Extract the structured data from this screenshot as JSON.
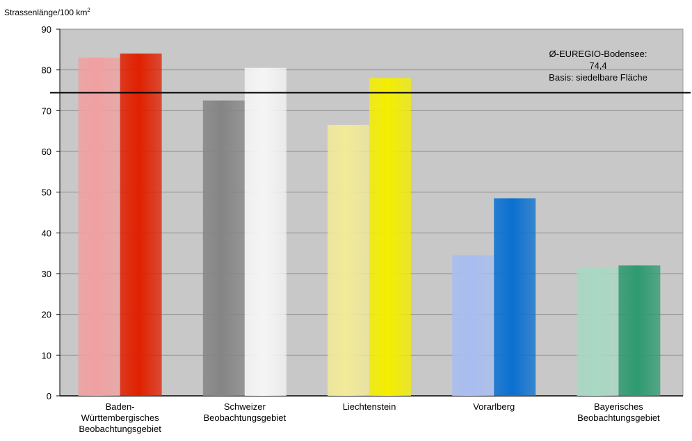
{
  "chart_data": {
    "type": "bar",
    "title": "",
    "ylabel": "Strassenlänge/100 km",
    "ylabel_superscript": "2",
    "xlabel": "",
    "ylim": [
      0,
      90
    ],
    "yticks": [
      0,
      10,
      20,
      30,
      40,
      50,
      60,
      70,
      80,
      90
    ],
    "grid": true,
    "categories": [
      [
        "Baden-",
        "Württembergisches",
        "Beobachtungsgebiet"
      ],
      [
        "Schweizer",
        "Beobachtungsgebiet"
      ],
      [
        "Liechtenstein"
      ],
      [
        "Vorarlberg"
      ],
      [
        "Bayerisches",
        "Beobachtungsgebiet"
      ]
    ],
    "series": [
      {
        "values": [
          83,
          72.5,
          66.5,
          34.5,
          31.5
        ]
      },
      {
        "values": [
          84,
          80.5,
          78,
          48.5,
          32
        ]
      }
    ],
    "bar_colors": [
      [
        "#f0a0a0",
        "#e02000"
      ],
      [
        "#858585",
        "#f5f5f5"
      ],
      [
        "#f2ea98",
        "#f4ee00"
      ],
      [
        "#a8bdf0",
        "#0a70d0"
      ],
      [
        "#a8d8c4",
        "#2e9a70"
      ]
    ],
    "reference_line": {
      "value": 74.4,
      "label_lines": [
        "Ø-EUREGIO-Bodensee:",
        "74,4",
        "Basis: siedelbare Fläche"
      ]
    },
    "plot_background": "#c8c8c8"
  }
}
